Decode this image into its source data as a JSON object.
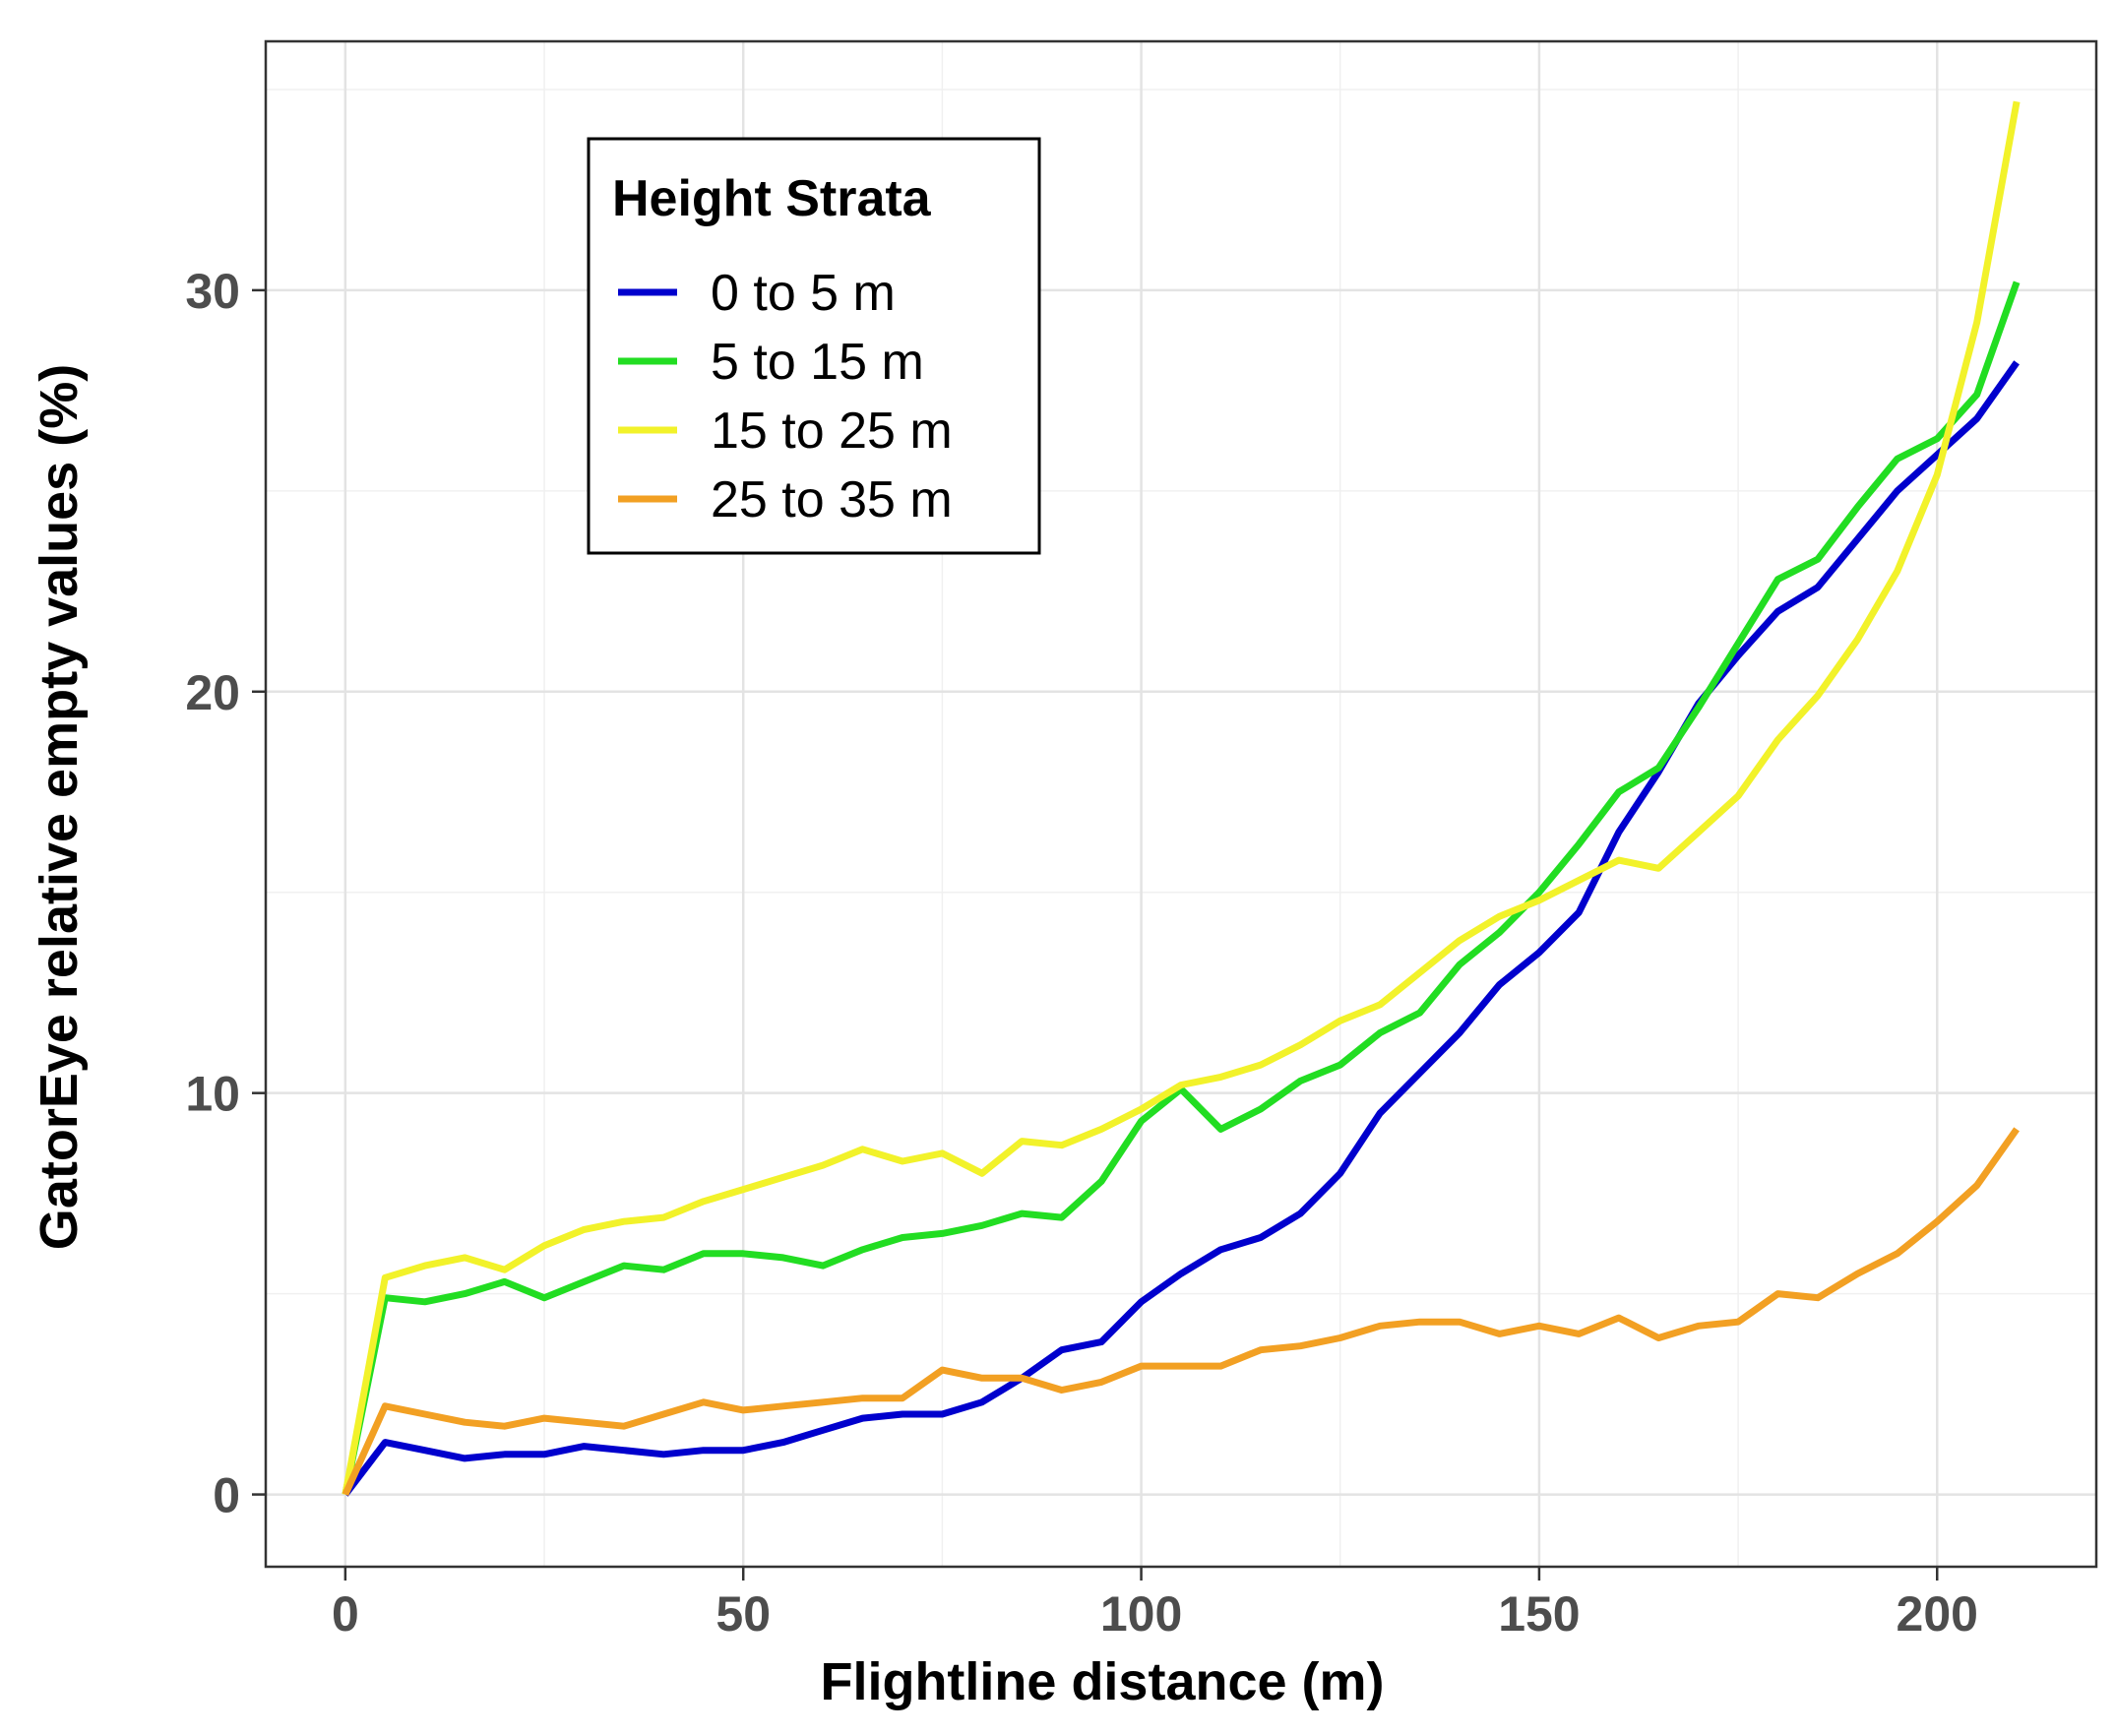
{
  "chart_data": {
    "type": "line",
    "title": "",
    "xlabel": "Flightline distance (m)",
    "ylabel": "GatorEye relative empty values (%)",
    "xlim": [
      -10,
      220
    ],
    "ylim": [
      -1.8,
      36.2
    ],
    "x_ticks": [
      0,
      50,
      100,
      150,
      200
    ],
    "y_ticks": [
      0,
      10,
      20,
      30
    ],
    "x_minor_ticks": [
      25,
      75,
      125,
      175
    ],
    "y_minor_ticks": [
      5,
      15,
      25,
      35
    ],
    "grid": true,
    "legend": {
      "title": "Height Strata",
      "position": "top-left"
    },
    "x": [
      0,
      5,
      10,
      15,
      20,
      25,
      30,
      35,
      40,
      45,
      50,
      55,
      60,
      65,
      70,
      75,
      80,
      85,
      90,
      95,
      100,
      105,
      110,
      115,
      120,
      125,
      130,
      135,
      140,
      145,
      150,
      155,
      160,
      165,
      170,
      175,
      180,
      185,
      190,
      195,
      200,
      205,
      210
    ],
    "series": [
      {
        "name": "0 to 5 m",
        "color": "#0000cd",
        "values": [
          0,
          1.3,
          1.1,
          0.9,
          1.0,
          1.0,
          1.2,
          1.1,
          1.0,
          1.1,
          1.1,
          1.3,
          1.6,
          1.9,
          2.0,
          2.0,
          2.3,
          2.9,
          3.6,
          3.8,
          4.8,
          5.5,
          6.1,
          6.4,
          7.0,
          8.0,
          9.5,
          10.5,
          11.5,
          12.7,
          13.5,
          14.5,
          16.5,
          18.0,
          19.7,
          20.9,
          22.0,
          22.6,
          23.8,
          25.0,
          25.9,
          26.8,
          28.2
        ]
      },
      {
        "name": "5 to 15 m",
        "color": "#22dd22",
        "values": [
          0,
          4.9,
          4.8,
          5.0,
          5.3,
          4.9,
          5.3,
          5.7,
          5.6,
          6.0,
          6.0,
          5.9,
          5.7,
          6.1,
          6.4,
          6.5,
          6.7,
          7.0,
          6.9,
          7.8,
          9.3,
          10.1,
          9.1,
          9.6,
          10.3,
          10.7,
          11.5,
          12.0,
          13.2,
          14.0,
          15.0,
          16.2,
          17.5,
          18.1,
          19.6,
          21.2,
          22.8,
          23.3,
          24.6,
          25.8,
          26.3,
          27.4,
          30.2
        ]
      },
      {
        "name": "15 to 25 m",
        "color": "#f2f22a",
        "values": [
          0,
          5.4,
          5.7,
          5.9,
          5.6,
          6.2,
          6.6,
          6.8,
          6.9,
          7.3,
          7.6,
          7.9,
          8.2,
          8.6,
          8.3,
          8.5,
          8.0,
          8.8,
          8.7,
          9.1,
          9.6,
          10.2,
          10.4,
          10.7,
          11.2,
          11.8,
          12.2,
          13.0,
          13.8,
          14.4,
          14.8,
          15.3,
          15.8,
          15.6,
          16.5,
          17.4,
          18.8,
          19.9,
          21.3,
          23.0,
          25.4,
          29.2,
          34.7
        ]
      },
      {
        "name": "25 to 35 m",
        "color": "#f2a023",
        "values": [
          0,
          2.2,
          2.0,
          1.8,
          1.7,
          1.9,
          1.8,
          1.7,
          2.0,
          2.3,
          2.1,
          2.2,
          2.3,
          2.4,
          2.4,
          3.1,
          2.9,
          2.9,
          2.6,
          2.8,
          3.2,
          3.2,
          3.2,
          3.6,
          3.7,
          3.9,
          4.2,
          4.3,
          4.3,
          4.0,
          4.2,
          4.0,
          4.4,
          3.9,
          4.2,
          4.3,
          5.0,
          4.9,
          5.5,
          6.0,
          6.8,
          7.7,
          9.1
        ]
      }
    ]
  }
}
